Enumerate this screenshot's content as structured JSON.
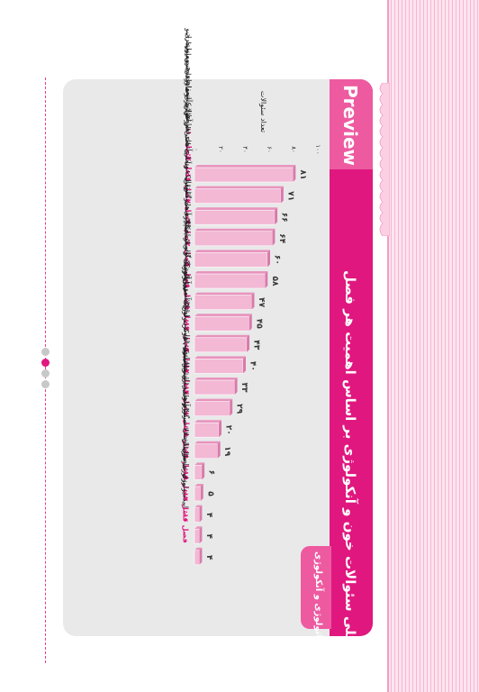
{
  "header": {
    "preview": "Preview",
    "title": "نمودار کلی سئوالات خون و آنکولوژی بر اساس اهمیت هر فصل",
    "tag": "هماتولوژی و آنکولوژی"
  },
  "colors": {
    "accent": "#e0177f",
    "bar": "#f2b8d4",
    "bar_top": "#e893bd",
    "panel": "#e9e9ea"
  },
  "chart_data": {
    "type": "bar",
    "orientation": "horizontal",
    "ylabel": "تعداد سئوالات",
    "axis_ticks": [
      "۰",
      "۲۰",
      "۴۰",
      "۶۰",
      "۸۰",
      "۱۰۰"
    ],
    "xlim": [
      0,
      100
    ],
    "grid": false,
    "categories": [
      {
        "num": "فصل ۱۰:",
        "name": "اختلالات انعقادی و ترومبوز"
      },
      {
        "num": "فصل ۲:",
        "name": "آنمی فقر آهن و آنمی های هیپوپرولیفراتیو"
      },
      {
        "num": "فصل ۱۱:",
        "name": "بیماری های هموستاتیک و داروهای ضدانعقادی"
      },
      {
        "num": "فصل ۷:",
        "name": "انتقال خون"
      },
      {
        "num": "فصل ۴:",
        "name": "آنمی همولیتیک و آنمی ناشی از خونریزی حاد"
      },
      {
        "num": "فصل ۳:",
        "name": "اختلالات هموگلوبین"
      },
      {
        "num": "فصل ۶:",
        "name": "لوسمی میلوئید حاد"
      },
      {
        "num": "فصل ۸:",
        "name": "آنمی مگالوبلاستیک"
      },
      {
        "num": "فصل ۵:",
        "name": "آنمی آپلاستیک و میلودیسپلازی"
      },
      {
        "num": "فصل ۱۳:",
        "name": "اختلالات ترومبوتیک"
      },
      {
        "num": "فصل ۹:",
        "name": "لوسمی میلوئید مزمن"
      },
      {
        "num": "فصل ۱۲:",
        "name": "لنفوم ها"
      },
      {
        "num": "فصل ۱۴:",
        "name": "سرطان ریه"
      },
      {
        "num": "فصل ۱:",
        "name": "آنمی و پلی سیتمی"
      },
      {
        "num": "فصل ۱۸:",
        "name": "سندرم های پارانئوپلاستیک اندوکرینولوژیک - هماتولوژیک"
      },
      {
        "num": "فصل ۱۹:",
        "name": "اختلالات گرانولوسیت و منوسیت"
      },
      {
        "num": "فصل ۱۵:",
        "name": "اصول درمان سرطان"
      },
      {
        "num": "فصل ۱۷:",
        "name": "بیولوژی سرطان"
      },
      {
        "num": "فصل ۱۶:",
        "name": "اپیدمیولوژی سرطان"
      }
    ],
    "values": [
      81,
      71,
      66,
      64,
      60,
      58,
      47,
      45,
      43,
      40,
      33,
      29,
      20,
      19,
      6,
      5,
      4,
      4,
      4
    ],
    "value_labels": [
      "۸۱",
      "۷۱",
      "۶۶",
      "۶۴",
      "۶۰",
      "۵۸",
      "۴۷",
      "۴۵",
      "۴۳",
      "۴۰",
      "۳۳",
      "۲۹",
      "۲۰",
      "۱۹",
      "۶",
      "۵",
      "۴",
      "۴",
      "۴"
    ]
  }
}
